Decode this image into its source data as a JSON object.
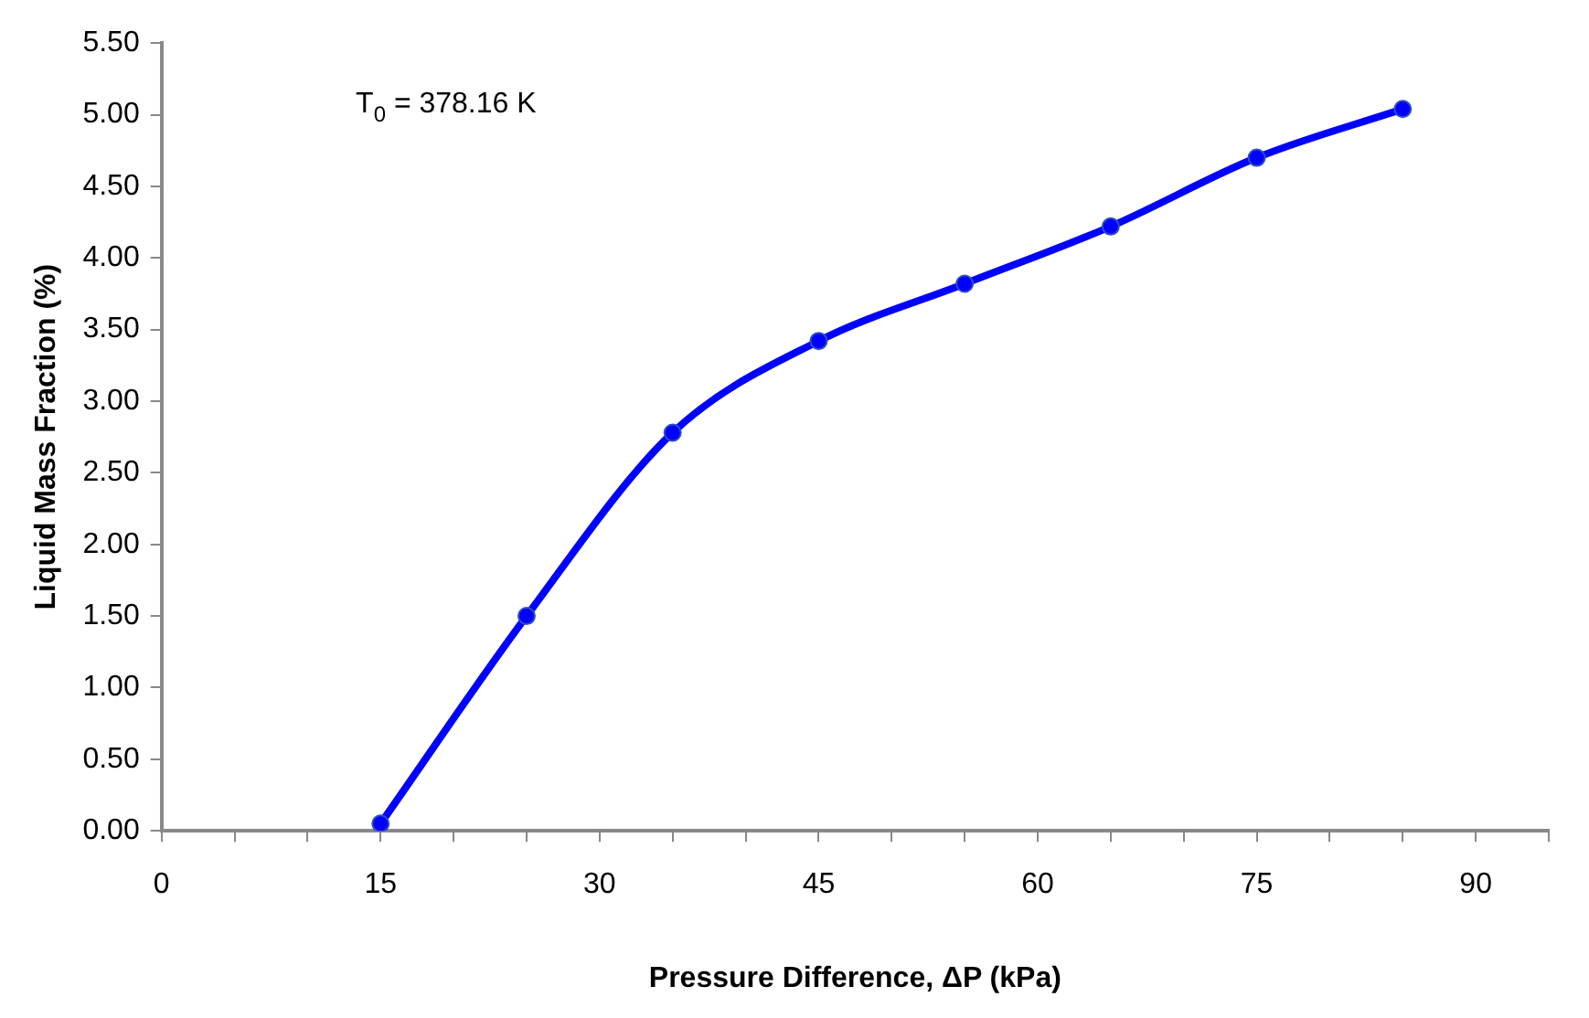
{
  "chart_data": {
    "type": "line",
    "xlabel": "Pressure Difference, ΔP (kPa)",
    "ylabel": "Liquid Mass Fraction (%)",
    "annotations": [
      "T$_{0}$ = 378.16 K"
    ],
    "x": [
      15,
      25,
      35,
      45,
      55,
      65,
      75,
      85
    ],
    "series": [
      {
        "color": "#0000ff",
        "values": [
          0.05,
          1.5,
          2.78,
          3.42,
          3.82,
          4.22,
          4.7,
          5.04
        ]
      }
    ],
    "xlim": [
      0,
      95
    ],
    "xticks": [
      0,
      {
        "value": 5,
        "label": null
      },
      {
        "value": 10,
        "label": null
      },
      15,
      {
        "value": 20,
        "label": null
      },
      {
        "value": 25,
        "label": null
      },
      30,
      {
        "value": 35,
        "label": null
      },
      {
        "value": 40,
        "label": null
      },
      45,
      {
        "value": 50,
        "label": null
      },
      {
        "value": 55,
        "label": null
      },
      60,
      {
        "value": 65,
        "label": null
      },
      {
        "value": 70,
        "label": null
      },
      75,
      {
        "value": 80,
        "label": null
      },
      {
        "value": 85,
        "label": null
      },
      90,
      {
        "value": 95,
        "label": null
      }
    ],
    "ylim": [
      0,
      5.5
    ],
    "yticks": [
      {
        "value": 0,
        "label": "0.00"
      },
      {
        "value": 0.5,
        "label": "0.50"
      },
      {
        "value": 1,
        "label": "1.00"
      },
      {
        "value": 1.5,
        "label": "1.50"
      },
      {
        "value": 2,
        "label": "2.00"
      },
      {
        "value": 2.5,
        "label": "2.50"
      },
      {
        "value": 3,
        "label": "3.00"
      },
      {
        "value": 3.5,
        "label": "3.50"
      },
      {
        "value": 4,
        "label": "4.00"
      },
      {
        "value": 4.5,
        "label": "4.50"
      },
      {
        "value": 5,
        "label": "5.00"
      },
      {
        "value": 5.5,
        "label": "5.50"
      }
    ],
    "grid": false,
    "legend": false,
    "marker": "circle",
    "line_style": "solid"
  }
}
